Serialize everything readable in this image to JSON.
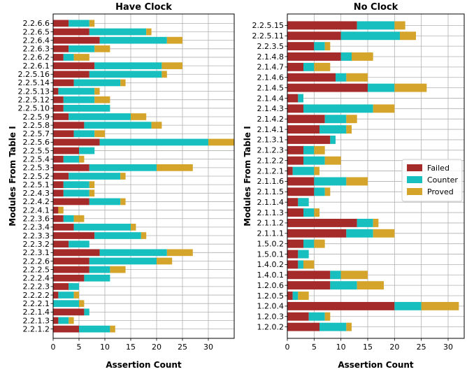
{
  "colors": {
    "failed": "#a52a2a",
    "counter": "#17bfbf",
    "proved": "#d4a52a"
  },
  "chart_data": [
    {
      "type": "bar",
      "orientation": "horizontal",
      "stacked": true,
      "title": "Have Clock",
      "xlabel": "Assertion Count",
      "ylabel": "Modules From Table I",
      "xlim": [
        0,
        35
      ],
      "xticks": [
        0,
        5,
        10,
        15,
        20,
        25,
        30
      ],
      "grid": true,
      "categories": [
        "2.2.6.6",
        "2.2.6.5",
        "2.2.6.4",
        "2.2.6.3",
        "2.2.6.2",
        "2.2.6.1",
        "2.2.5.16",
        "2.2.5.14",
        "2.2.5.13",
        "2.2.5.12",
        "2.2.5.10",
        "2.2.5.9",
        "2.2.5.8",
        "2.2.5.7",
        "2.2.5.6",
        "2.2.5.5",
        "2.2.5.4",
        "2.2.5.3",
        "2.2.5.2",
        "2.2.5.1",
        "2.2.4.3",
        "2.2.4.2",
        "2.2.4.1",
        "2.2.3.6",
        "2.2.3.4",
        "2.2.3.3",
        "2.2.3.2",
        "2.2.3.1",
        "2.2.2.6",
        "2.2.2.5",
        "2.2.2.4",
        "2.2.2.3",
        "2.2.2.2",
        "2.2.2.1",
        "2.2.1.4",
        "2.2.1.3",
        "2.2.1.2"
      ],
      "series": [
        {
          "name": "Failed",
          "values": [
            3,
            7,
            9,
            3,
            2,
            8,
            7,
            4,
            1,
            2,
            2,
            3,
            6,
            4,
            9,
            5,
            2,
            7,
            3,
            2,
            2,
            7,
            1,
            2,
            4,
            8,
            3,
            9,
            7,
            7,
            6,
            3,
            1,
            0,
            6,
            1,
            5
          ]
        },
        {
          "name": "Counter",
          "values": [
            4,
            11,
            13,
            5,
            2,
            13,
            14,
            9,
            7,
            6,
            9,
            12,
            13,
            4,
            21,
            3,
            3,
            13,
            10,
            5,
            5,
            6,
            0,
            2,
            11,
            9,
            4,
            13,
            13,
            4,
            5,
            2,
            3,
            5,
            1,
            2,
            6
          ]
        },
        {
          "name": "Proved",
          "values": [
            1,
            1,
            3,
            3,
            3,
            4,
            1,
            1,
            1,
            3,
            0,
            3,
            2,
            2,
            5,
            0,
            1,
            7,
            1,
            1,
            1,
            1,
            1,
            2,
            1,
            1,
            0,
            5,
            3,
            3,
            0,
            0,
            1,
            1,
            0,
            1,
            1
          ]
        }
      ]
    },
    {
      "type": "bar",
      "orientation": "horizontal",
      "stacked": true,
      "title": "No Clock",
      "xlabel": "Assertion Count",
      "ylabel": "Modules From Table I",
      "xlim": [
        0,
        33
      ],
      "xticks": [
        0,
        5,
        10,
        15,
        20,
        25,
        30
      ],
      "grid": true,
      "legend_position": "center-right",
      "categories": [
        "2.2.5.15",
        "2.2.5.11",
        "2.2.3.5",
        "2.1.4.8",
        "2.1.4.7",
        "2.1.4.6",
        "2.1.4.5",
        "2.1.4.4",
        "2.1.4.3",
        "2.1.4.2",
        "2.1.4.1",
        "2.1.3.1",
        "2.1.2.3",
        "2.1.2.2",
        "2.1.2.1",
        "2.1.1.6",
        "2.1.1.5",
        "2.1.1.4",
        "2.1.1.3",
        "2.1.1.2",
        "2.1.1.1",
        "1.5.0.2",
        "1.5.0.1",
        "1.4.0.2",
        "1.4.0.1",
        "1.2.0.6",
        "1.2.0.5",
        "1.2.0.4",
        "1.2.0.3",
        "1.2.0.2"
      ],
      "series": [
        {
          "name": "Failed",
          "values": [
            13,
            10,
            5,
            10,
            3,
            9,
            15,
            2,
            3,
            7,
            6,
            8,
            3,
            3,
            1,
            5,
            5,
            2,
            3,
            13,
            11,
            3,
            2,
            2,
            8,
            8,
            1,
            20,
            4,
            6
          ]
        },
        {
          "name": "Counter",
          "values": [
            7,
            11,
            2,
            2,
            2,
            2,
            5,
            1,
            13,
            4,
            5,
            1,
            2,
            4,
            4,
            6,
            2,
            2,
            2,
            3,
            5,
            2,
            2,
            1,
            2,
            5,
            1,
            5,
            3,
            5
          ]
        },
        {
          "name": "Proved",
          "values": [
            2,
            3,
            1,
            4,
            3,
            4,
            6,
            0,
            4,
            2,
            1,
            0,
            2,
            3,
            1,
            4,
            1,
            0,
            1,
            1,
            4,
            2,
            0,
            2,
            5,
            5,
            2,
            7,
            1,
            1
          ]
        }
      ]
    }
  ]
}
